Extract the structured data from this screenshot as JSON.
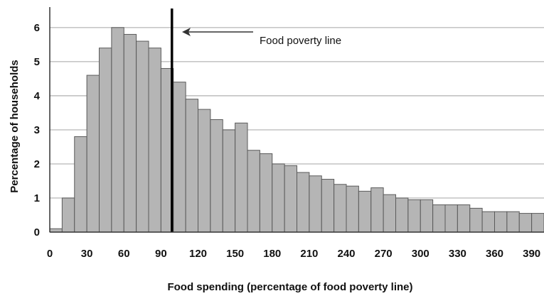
{
  "chart_data": {
    "type": "bar",
    "title": "",
    "xlabel": "Food spending (percentage of food poverty line)",
    "ylabel": "Percentage of households",
    "xlim": [
      0,
      400
    ],
    "ylim": [
      0,
      6.5
    ],
    "bin_width": 10,
    "x_ticks": [
      "0",
      "30",
      "60",
      "90",
      "120",
      "150",
      "180",
      "210",
      "240",
      "270",
      "300",
      "330",
      "360",
      "390"
    ],
    "x_tick_values": [
      0,
      30,
      60,
      90,
      120,
      150,
      180,
      210,
      240,
      270,
      300,
      330,
      360,
      390
    ],
    "y_ticks": [
      "0",
      "1",
      "2",
      "3",
      "4",
      "5",
      "6"
    ],
    "y_tick_values": [
      0,
      1,
      2,
      3,
      4,
      5,
      6
    ],
    "grid": "horizontal",
    "bins_start": [
      0,
      10,
      20,
      30,
      40,
      50,
      60,
      70,
      80,
      90,
      100,
      110,
      120,
      130,
      140,
      150,
      160,
      170,
      180,
      190,
      200,
      210,
      220,
      230,
      240,
      250,
      260,
      270,
      280,
      290,
      300,
      310,
      320,
      330,
      340,
      350,
      360,
      370,
      380,
      390
    ],
    "values": [
      0.1,
      1.0,
      2.8,
      4.6,
      5.4,
      6.0,
      5.8,
      5.6,
      5.4,
      4.8,
      4.4,
      3.9,
      3.6,
      3.3,
      3.0,
      3.2,
      2.4,
      2.3,
      2.0,
      1.95,
      1.75,
      1.65,
      1.55,
      1.4,
      1.35,
      1.2,
      1.3,
      1.1,
      1.0,
      0.95,
      0.95,
      0.8,
      0.8,
      0.8,
      0.7,
      0.6,
      0.6,
      0.6,
      0.55,
      0.55
    ],
    "bar_color": "#b5b5b5",
    "reference_line": {
      "x": 100,
      "label": "Food poverty line",
      "color": "#000000"
    }
  }
}
